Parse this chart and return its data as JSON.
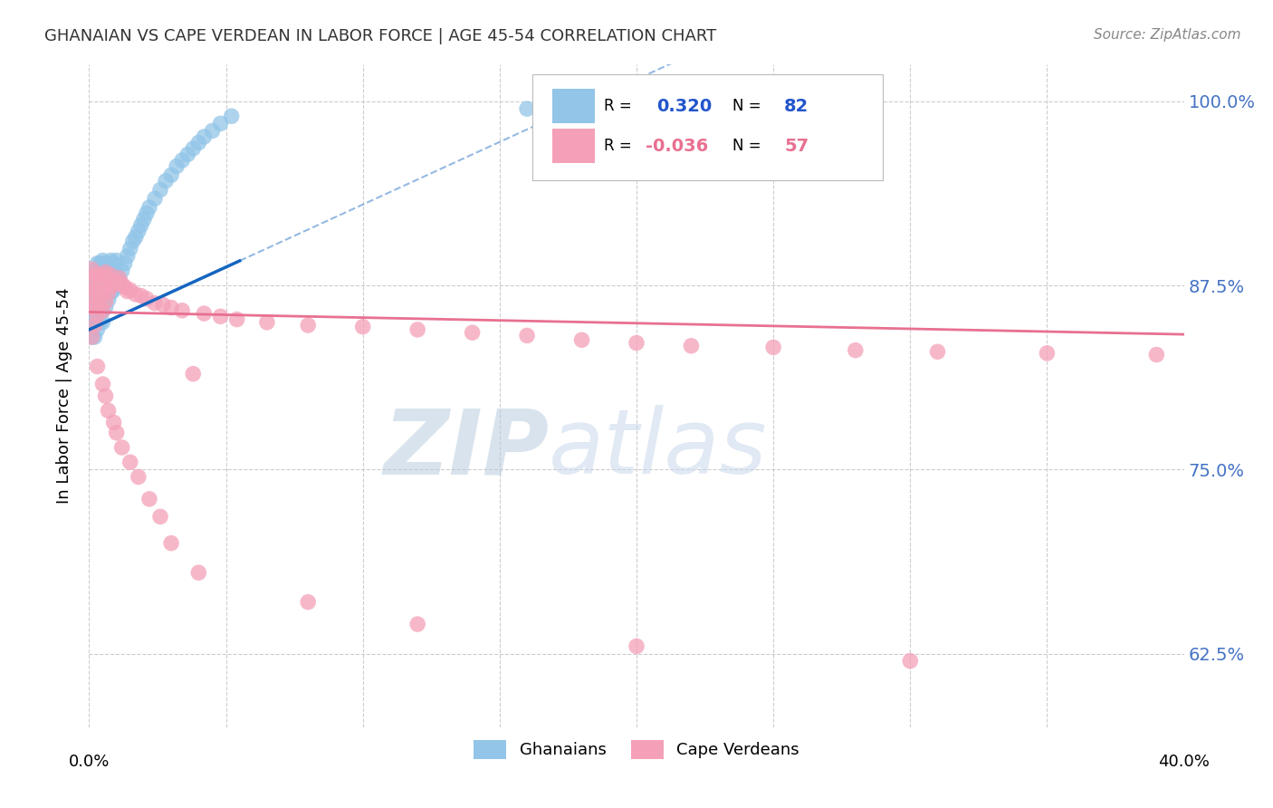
{
  "title": "GHANAIAN VS CAPE VERDEAN IN LABOR FORCE | AGE 45-54 CORRELATION CHART",
  "source": "Source: ZipAtlas.com",
  "ylabel": "In Labor Force | Age 45-54",
  "ytick_labels": [
    "62.5%",
    "75.0%",
    "87.5%",
    "100.0%"
  ],
  "ytick_values": [
    0.625,
    0.75,
    0.875,
    1.0
  ],
  "xlim": [
    0.0,
    0.4
  ],
  "ylim": [
    0.575,
    1.025
  ],
  "ghanaian_color": "#92C5E8",
  "cape_verdean_color": "#F4A0B8",
  "trend_blue": "#1565C0",
  "trend_pink": "#E87090",
  "watermark_zip": "ZIP",
  "watermark_atlas": "atlas",
  "ghanaian_x": [
    0.001,
    0.001,
    0.001,
    0.001,
    0.001,
    0.001,
    0.002,
    0.002,
    0.002,
    0.002,
    0.002,
    0.002,
    0.002,
    0.002,
    0.003,
    0.003,
    0.003,
    0.003,
    0.003,
    0.003,
    0.003,
    0.003,
    0.004,
    0.004,
    0.004,
    0.004,
    0.004,
    0.004,
    0.004,
    0.005,
    0.005,
    0.005,
    0.005,
    0.005,
    0.005,
    0.005,
    0.005,
    0.006,
    0.006,
    0.006,
    0.006,
    0.006,
    0.007,
    0.007,
    0.007,
    0.007,
    0.008,
    0.008,
    0.008,
    0.008,
    0.009,
    0.009,
    0.009,
    0.01,
    0.01,
    0.01,
    0.011,
    0.012,
    0.013,
    0.014,
    0.015,
    0.016,
    0.017,
    0.018,
    0.019,
    0.02,
    0.021,
    0.022,
    0.024,
    0.026,
    0.028,
    0.03,
    0.032,
    0.034,
    0.036,
    0.038,
    0.04,
    0.042,
    0.045,
    0.048,
    0.052,
    0.16
  ],
  "ghanaian_y": [
    0.84,
    0.85,
    0.86,
    0.87,
    0.875,
    0.88,
    0.84,
    0.85,
    0.86,
    0.865,
    0.87,
    0.875,
    0.88,
    0.885,
    0.845,
    0.855,
    0.86,
    0.865,
    0.87,
    0.875,
    0.88,
    0.89,
    0.85,
    0.86,
    0.87,
    0.875,
    0.88,
    0.885,
    0.89,
    0.85,
    0.858,
    0.865,
    0.87,
    0.876,
    0.88,
    0.885,
    0.892,
    0.86,
    0.87,
    0.876,
    0.882,
    0.89,
    0.865,
    0.872,
    0.88,
    0.888,
    0.87,
    0.876,
    0.884,
    0.892,
    0.872,
    0.88,
    0.89,
    0.875,
    0.883,
    0.892,
    0.88,
    0.885,
    0.89,
    0.895,
    0.9,
    0.905,
    0.908,
    0.912,
    0.916,
    0.92,
    0.924,
    0.928,
    0.934,
    0.94,
    0.946,
    0.95,
    0.956,
    0.96,
    0.964,
    0.968,
    0.972,
    0.976,
    0.98,
    0.985,
    0.99,
    0.995
  ],
  "cape_verdean_x": [
    0.001,
    0.001,
    0.001,
    0.001,
    0.001,
    0.002,
    0.002,
    0.002,
    0.002,
    0.003,
    0.003,
    0.003,
    0.004,
    0.004,
    0.004,
    0.005,
    0.005,
    0.005,
    0.006,
    0.006,
    0.006,
    0.007,
    0.007,
    0.008,
    0.008,
    0.009,
    0.01,
    0.011,
    0.012,
    0.013,
    0.014,
    0.015,
    0.017,
    0.019,
    0.021,
    0.024,
    0.027,
    0.03,
    0.034,
    0.038,
    0.042,
    0.048,
    0.054,
    0.065,
    0.08,
    0.1,
    0.12,
    0.14,
    0.16,
    0.18,
    0.2,
    0.22,
    0.25,
    0.28,
    0.31,
    0.35,
    0.39
  ],
  "cape_verdean_y": [
    0.84,
    0.86,
    0.87,
    0.88,
    0.886,
    0.848,
    0.862,
    0.872,
    0.882,
    0.855,
    0.87,
    0.882,
    0.862,
    0.874,
    0.882,
    0.858,
    0.87,
    0.882,
    0.864,
    0.875,
    0.884,
    0.87,
    0.88,
    0.874,
    0.882,
    0.876,
    0.878,
    0.88,
    0.876,
    0.874,
    0.871,
    0.872,
    0.869,
    0.868,
    0.866,
    0.863,
    0.862,
    0.86,
    0.858,
    0.815,
    0.856,
    0.854,
    0.852,
    0.85,
    0.848,
    0.847,
    0.845,
    0.843,
    0.841,
    0.838,
    0.836,
    0.834,
    0.833,
    0.831,
    0.83,
    0.829,
    0.828
  ],
  "cape_verdean_outliers_x": [
    0.003,
    0.005,
    0.006,
    0.007,
    0.009,
    0.01,
    0.012,
    0.015,
    0.018,
    0.022,
    0.026,
    0.03,
    0.04,
    0.08,
    0.12,
    0.2,
    0.3
  ],
  "cape_verdean_outliers_y": [
    0.82,
    0.808,
    0.8,
    0.79,
    0.782,
    0.775,
    0.765,
    0.755,
    0.745,
    0.73,
    0.718,
    0.7,
    0.68,
    0.66,
    0.645,
    0.63,
    0.62
  ]
}
